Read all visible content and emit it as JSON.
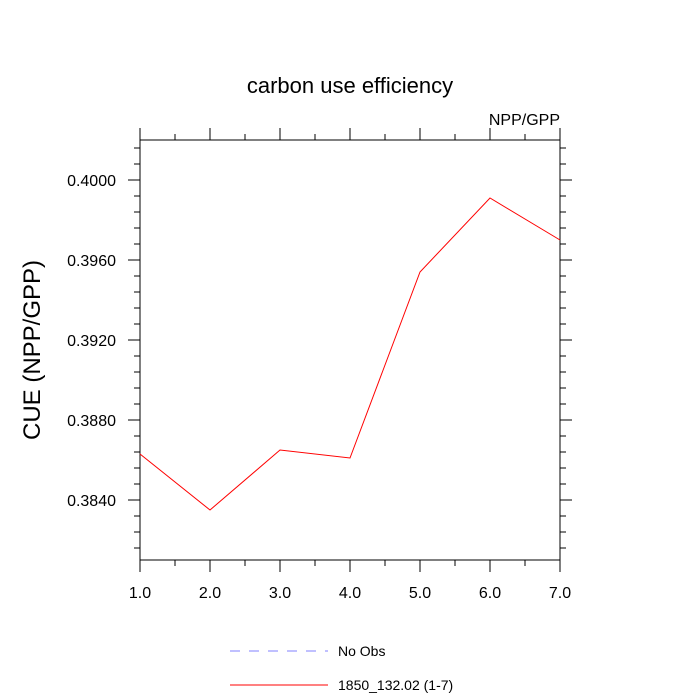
{
  "chart_data": {
    "type": "line",
    "title": "carbon use efficiency",
    "subtitle_right": "NPP/GPP",
    "xlabel": "",
    "ylabel": "CUE  (NPP/GPP)",
    "xlim": [
      1.0,
      7.0
    ],
    "ylim": [
      0.381,
      0.402
    ],
    "xticks": [
      1,
      2,
      3,
      4,
      5,
      6,
      7
    ],
    "xtick_labels": [
      "1.0",
      "2.0",
      "3.0",
      "4.0",
      "5.0",
      "6.0",
      "7.0"
    ],
    "yticks": [
      0.384,
      0.388,
      0.392,
      0.396,
      0.4
    ],
    "ytick_labels": [
      "0.3840",
      "0.3880",
      "0.3920",
      "0.3960",
      "0.4000"
    ],
    "grid": false,
    "legend_position": "bottom-center",
    "series": [
      {
        "name": "1850_132.02 (1-7)",
        "color": "#ff0000",
        "dash": "solid",
        "x": [
          1,
          2,
          3,
          4,
          5,
          6,
          7
        ],
        "values": [
          0.3863,
          0.3835,
          0.3865,
          0.3861,
          0.3954,
          0.3991,
          0.397
        ]
      }
    ],
    "legend": [
      {
        "label": "No Obs",
        "color": "#8080ff",
        "dash": "dashed"
      },
      {
        "label": "1850_132.02 (1-7)",
        "color": "#ff0000",
        "dash": "solid"
      }
    ]
  }
}
